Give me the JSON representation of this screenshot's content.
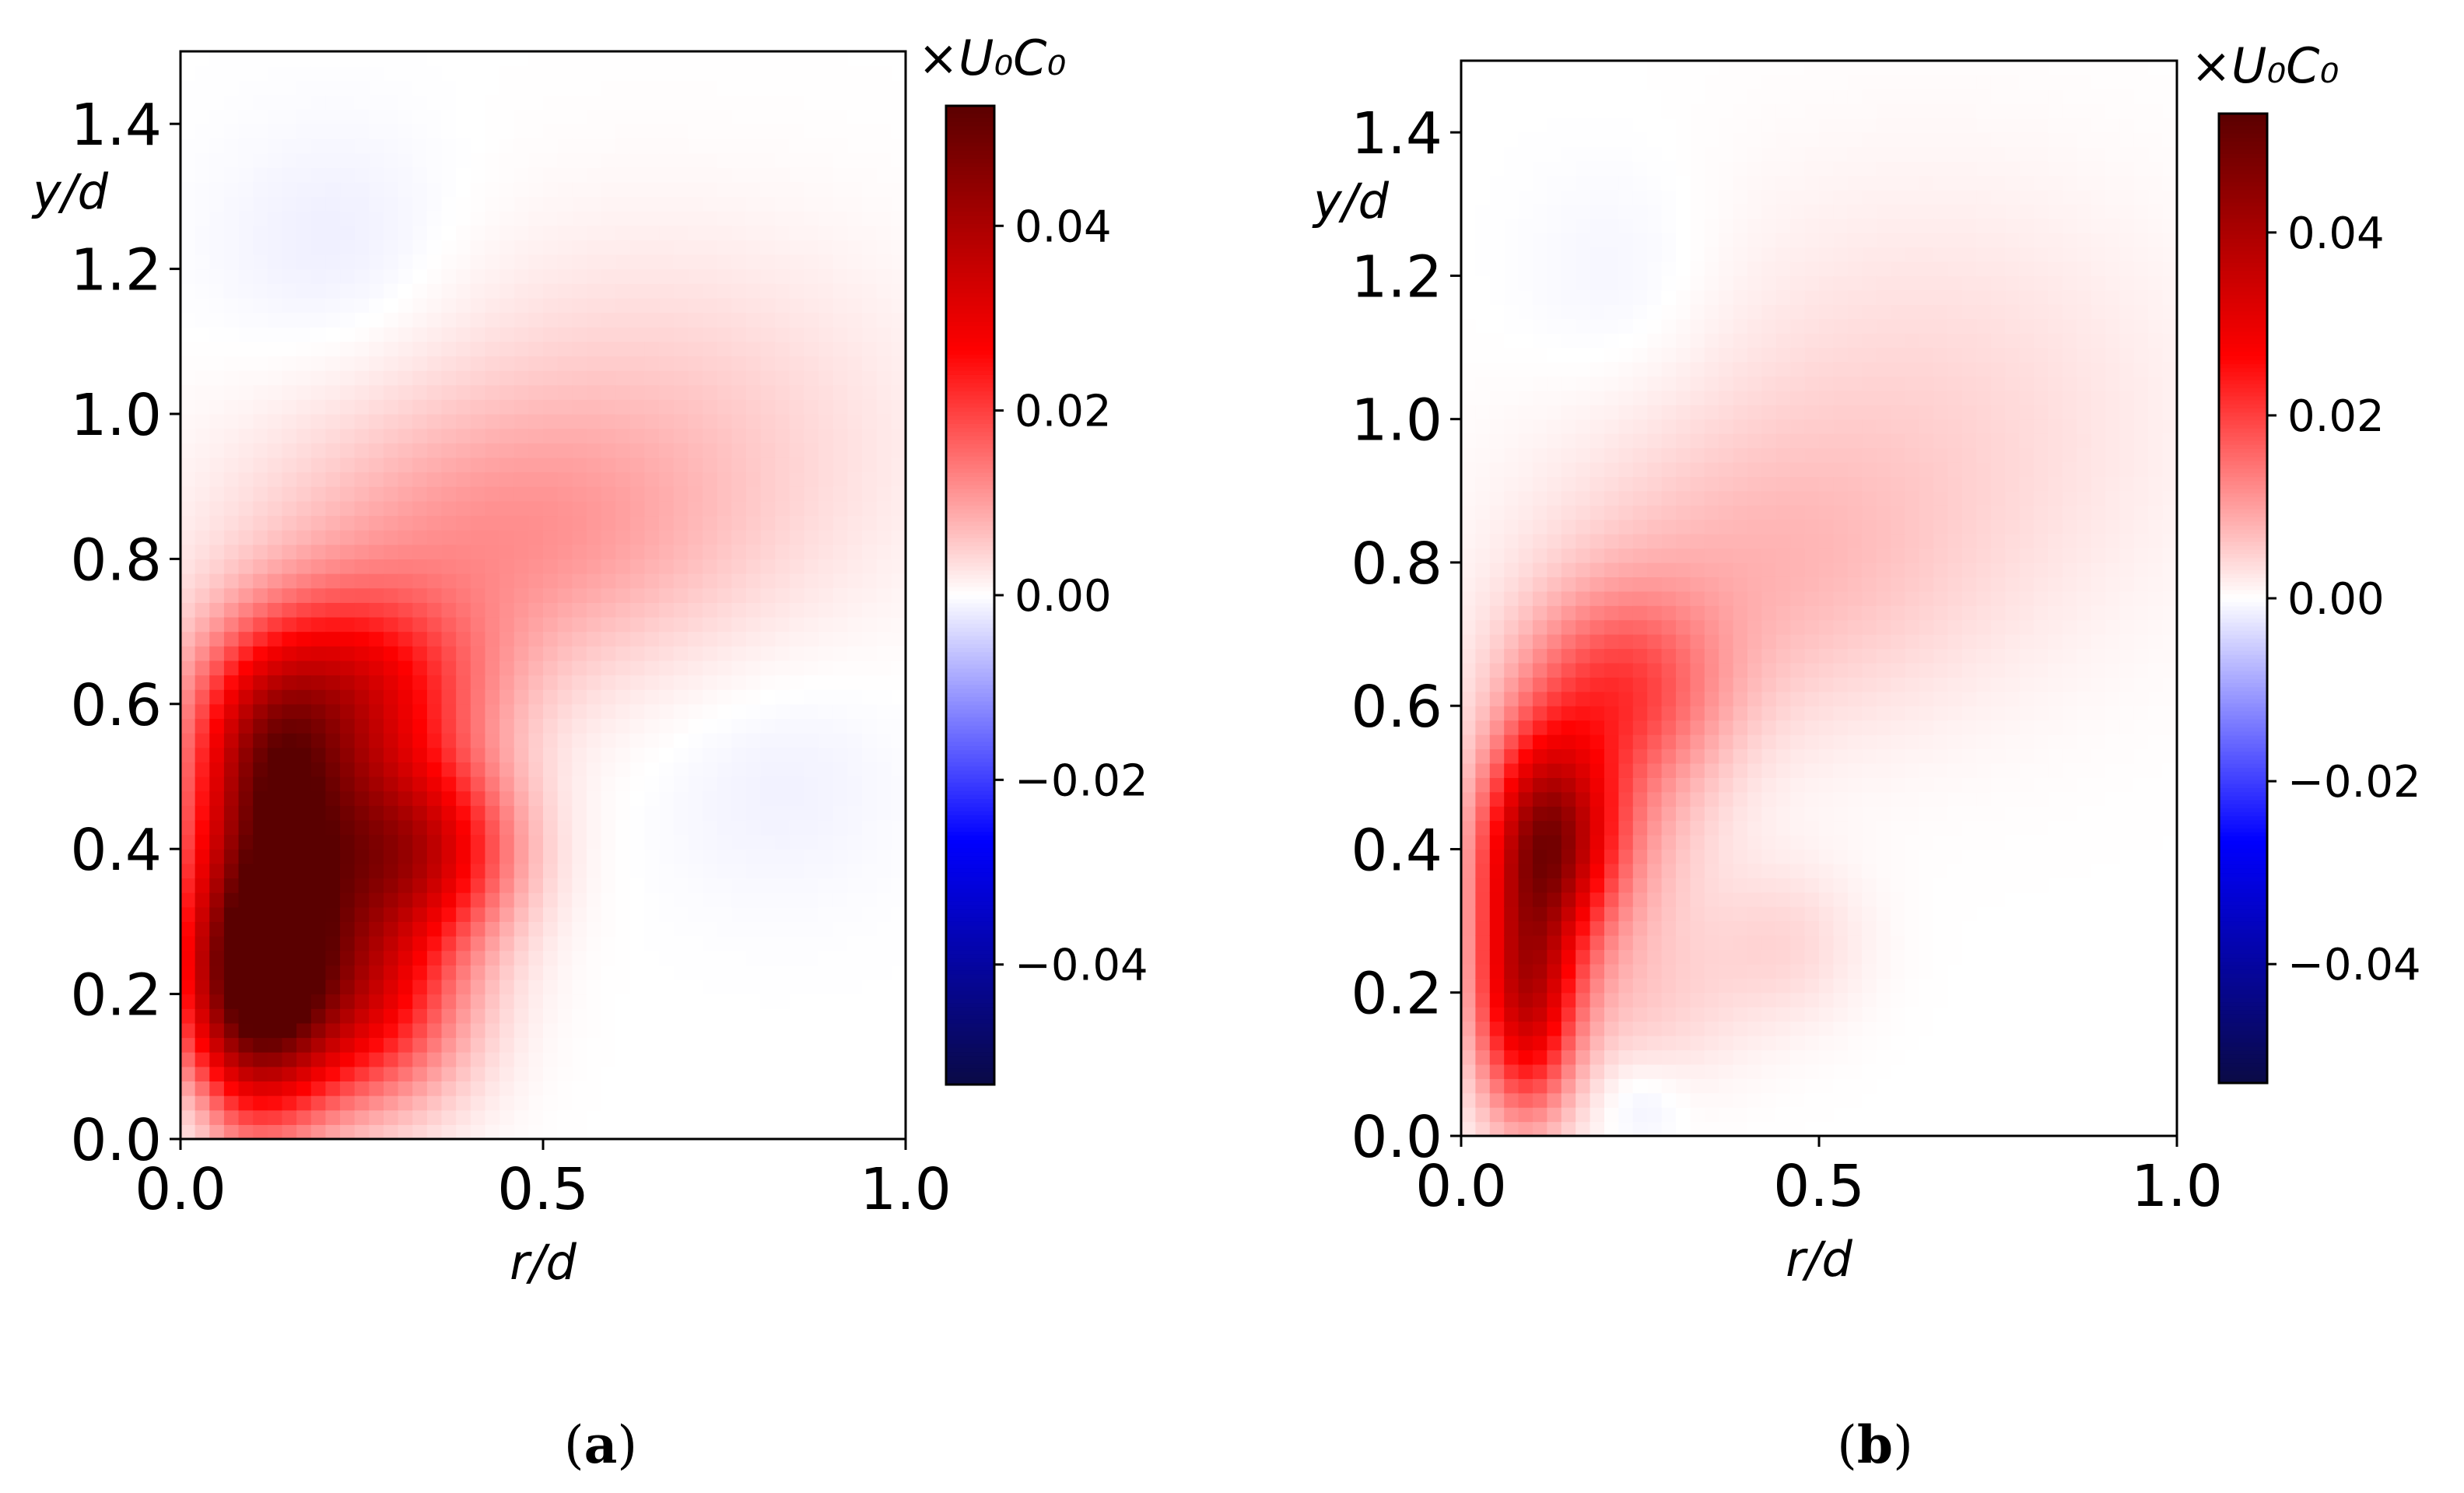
{
  "chart_data": [
    {
      "type": "heatmap",
      "panel_label": "a",
      "caption_open": "(",
      "caption_close": ")",
      "xlabel": "r/d",
      "ylabel": "y/d",
      "xlim": [
        0.0,
        1.0
      ],
      "ylim": [
        0.0,
        1.5
      ],
      "xticks": [
        "0.0",
        "0.5",
        "1.0"
      ],
      "yticks": [
        "0.0",
        "0.2",
        "0.4",
        "0.6",
        "0.8",
        "1.0",
        "1.2",
        "1.4"
      ],
      "colorbar": {
        "label": "×U₀C₀",
        "range": [
          -0.053,
          0.053
        ],
        "ticks": [
          "0.04",
          "0.02",
          "0.00",
          "−0.02",
          "−0.04"
        ],
        "tick_values": [
          0.04,
          0.02,
          0.0,
          -0.02,
          -0.04
        ],
        "colormap": [
          "#0a0a45",
          "#0000ff",
          "#ffffff",
          "#ff0000",
          "#5a0000"
        ]
      },
      "blobs": [
        {
          "x": 0.1,
          "y": 0.22,
          "sx": 0.07,
          "sy": 0.13,
          "value": 0.048
        },
        {
          "x": 0.19,
          "y": 0.4,
          "sx": 0.11,
          "sy": 0.16,
          "value": 0.033
        },
        {
          "x": 0.34,
          "y": 0.4,
          "sx": 0.09,
          "sy": 0.09,
          "value": 0.024
        },
        {
          "x": 0.24,
          "y": 0.63,
          "sx": 0.13,
          "sy": 0.09,
          "value": 0.02
        },
        {
          "x": 0.12,
          "y": 0.52,
          "sx": 0.07,
          "sy": 0.1,
          "value": 0.022
        },
        {
          "x": 0.42,
          "y": 0.82,
          "sx": 0.22,
          "sy": 0.13,
          "value": 0.009
        },
        {
          "x": 0.65,
          "y": 0.98,
          "sx": 0.25,
          "sy": 0.18,
          "value": 0.005
        },
        {
          "x": 0.25,
          "y": 0.18,
          "sx": 0.1,
          "sy": 0.1,
          "value": 0.02
        },
        {
          "x": 0.22,
          "y": 1.22,
          "sx": 0.12,
          "sy": 0.12,
          "value": -0.002
        },
        {
          "x": 0.82,
          "y": 0.5,
          "sx": 0.12,
          "sy": 0.12,
          "value": -0.0015
        },
        {
          "x": 0.02,
          "y": 0.04,
          "sx": 0.03,
          "sy": 0.05,
          "value": -0.003
        }
      ]
    },
    {
      "type": "heatmap",
      "panel_label": "b",
      "caption_open": "(",
      "caption_close": ")",
      "xlabel": "r/d",
      "ylabel": "y/d",
      "xlim": [
        0.0,
        1.0
      ],
      "ylim": [
        0.0,
        1.5
      ],
      "xticks": [
        "0.0",
        "0.5",
        "1.0"
      ],
      "yticks": [
        "0.0",
        "0.2",
        "0.4",
        "0.6",
        "0.8",
        "1.0",
        "1.2",
        "1.4"
      ],
      "colorbar": {
        "label": "×U₀C₀",
        "range": [
          -0.053,
          0.053
        ],
        "ticks": [
          "0.04",
          "0.02",
          "0.00",
          "−0.02",
          "−0.04"
        ],
        "tick_values": [
          0.04,
          0.02,
          0.0,
          -0.02,
          -0.04
        ],
        "colormap": [
          "#0a0a45",
          "#0000ff",
          "#ffffff",
          "#ff0000",
          "#5a0000"
        ]
      },
      "blobs": [
        {
          "x": 0.09,
          "y": 0.2,
          "sx": 0.05,
          "sy": 0.12,
          "value": 0.034
        },
        {
          "x": 0.12,
          "y": 0.42,
          "sx": 0.06,
          "sy": 0.1,
          "value": 0.034
        },
        {
          "x": 0.22,
          "y": 0.62,
          "sx": 0.1,
          "sy": 0.1,
          "value": 0.017
        },
        {
          "x": 0.18,
          "y": 0.4,
          "sx": 0.1,
          "sy": 0.12,
          "value": 0.01
        },
        {
          "x": 0.4,
          "y": 0.78,
          "sx": 0.2,
          "sy": 0.15,
          "value": 0.006
        },
        {
          "x": 0.65,
          "y": 1.0,
          "sx": 0.25,
          "sy": 0.22,
          "value": 0.004
        },
        {
          "x": 0.45,
          "y": 0.27,
          "sx": 0.08,
          "sy": 0.08,
          "value": 0.004
        },
        {
          "x": 0.25,
          "y": 0.18,
          "sx": 0.1,
          "sy": 0.08,
          "value": 0.004
        },
        {
          "x": 0.25,
          "y": 0.05,
          "sx": 0.04,
          "sy": 0.04,
          "value": -0.002
        },
        {
          "x": 0.23,
          "y": 1.18,
          "sx": 0.1,
          "sy": 0.12,
          "value": -0.0015
        }
      ]
    }
  ]
}
